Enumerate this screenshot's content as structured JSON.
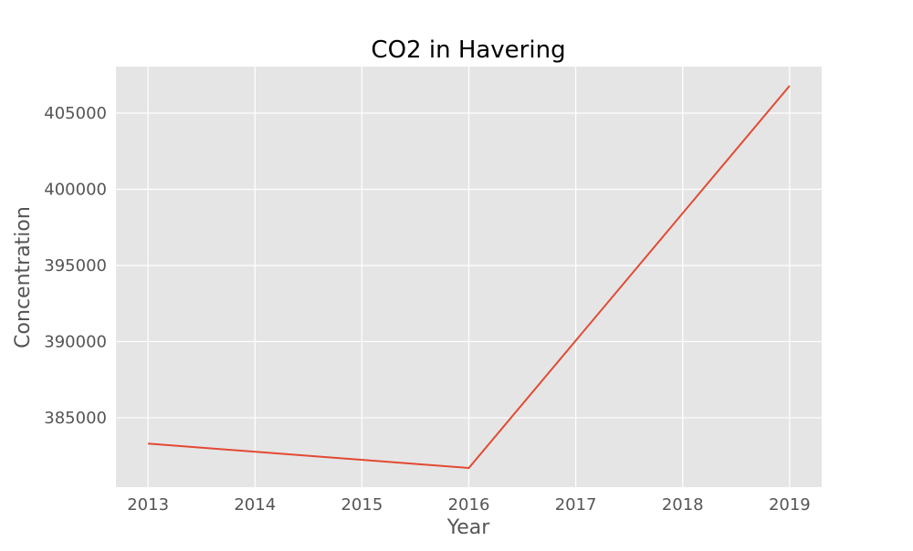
{
  "chart_data": {
    "type": "line",
    "title": "CO2 in Havering",
    "xlabel": "Year",
    "ylabel": "Concentration",
    "x": [
      2013,
      2014,
      2015,
      2016,
      2017,
      2018,
      2019
    ],
    "series": [
      {
        "x": [
          2013,
          2016,
          2019
        ],
        "values": [
          383300,
          381700,
          406800
        ],
        "color": "#e24a33"
      }
    ],
    "xticks": [
      "2013",
      "2014",
      "2015",
      "2016",
      "2017",
      "2018",
      "2019"
    ],
    "yticks": [
      "385000",
      "390000",
      "395000",
      "400000",
      "405000"
    ],
    "xlim": [
      2012.7,
      2019.3
    ],
    "ylim": [
      380445,
      408055
    ],
    "grid": true,
    "background": "#e5e5e5",
    "gridColor": "#ffffff"
  }
}
